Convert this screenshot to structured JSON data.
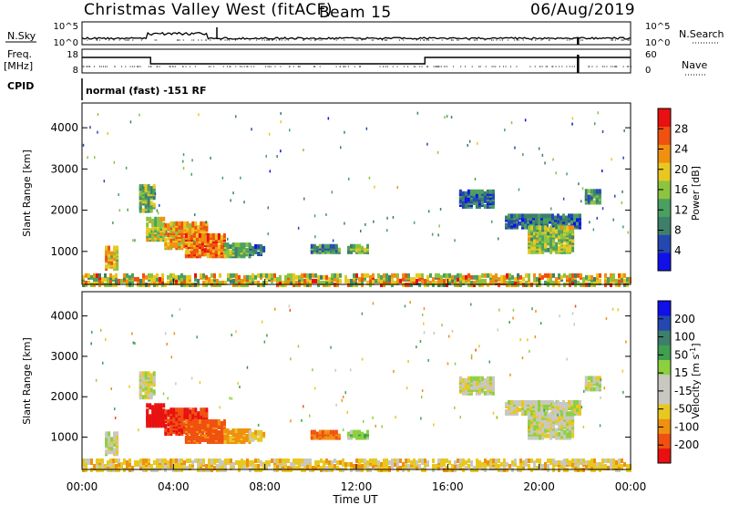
{
  "header": {
    "title": "Christmas Valley West (fitACF)",
    "beam": "Beam 15",
    "date": "06/Aug/2019"
  },
  "top_panels": {
    "nsky_label": "N.Sky",
    "nsky_ticks_left": [
      "10^5",
      "10^0"
    ],
    "nsky_ticks_right": [
      "10^5",
      "10^0"
    ],
    "nsearch_label": "N.Search",
    "freq_label": "Freq.",
    "freq_unit": "[MHz]",
    "freq_ticks": [
      "18",
      "8"
    ],
    "nave_ticks": [
      "60",
      "0"
    ],
    "nave_label": "Nave",
    "cpid_label": "CPID",
    "cpid_text": "normal (fast) -151 RF"
  },
  "colors": {
    "power_scale": [
      "#1010e8",
      "#2448b0",
      "#3e7f6a",
      "#4aa060",
      "#8cc440",
      "#e8c820",
      "#f09010",
      "#f05010",
      "#e81010"
    ],
    "velocity_scale": [
      "#e81010",
      "#f05010",
      "#f09010",
      "#e8c820",
      "#c8c8c0",
      "#c8c8c0",
      "#8cd040",
      "#40a050",
      "#3e7f6a",
      "#2448b0",
      "#1010e8"
    ],
    "ground_scatter": "#b4b4b4"
  },
  "chart_data": [
    {
      "type": "heatmap",
      "name": "power",
      "xlabel": "",
      "ylabel": "Slant Range [km]",
      "ylim": [
        200,
        4600
      ],
      "yticks": [
        "4000",
        "3000",
        "2000",
        "1000"
      ],
      "colorbar": {
        "label": "Power [dB]",
        "range": [
          0,
          32
        ],
        "ticks": [
          "28",
          "24",
          "20",
          "16",
          "12",
          "8",
          "4"
        ]
      },
      "regions": [
        {
          "t": [
            1.0,
            1.5
          ],
          "r": [
            600,
            1100
          ],
          "level": 20
        },
        {
          "t": [
            2.8,
            3.6
          ],
          "r": [
            1300,
            1800
          ],
          "level": 18
        },
        {
          "t": [
            3.6,
            5.4
          ],
          "r": [
            1100,
            1700
          ],
          "level": 22
        },
        {
          "t": [
            4.5,
            6.2
          ],
          "r": [
            900,
            1400
          ],
          "level": 25
        },
        {
          "t": [
            6.2,
            7.3
          ],
          "r": [
            900,
            1200
          ],
          "level": 14
        },
        {
          "t": [
            7.3,
            8.0
          ],
          "r": [
            950,
            1150
          ],
          "level": 8
        },
        {
          "t": [
            10.0,
            11.2
          ],
          "r": [
            1000,
            1150
          ],
          "level": 10
        },
        {
          "t": [
            11.6,
            12.5
          ],
          "r": [
            1000,
            1150
          ],
          "level": 14
        },
        {
          "t": [
            2.5,
            3.2
          ],
          "r": [
            2000,
            2600
          ],
          "level": 14
        },
        {
          "t": [
            16.5,
            18.0
          ],
          "r": [
            2100,
            2500
          ],
          "level": 8
        },
        {
          "t": [
            18.5,
            21.8
          ],
          "r": [
            1600,
            1900
          ],
          "level": 8
        },
        {
          "t": [
            19.5,
            21.5
          ],
          "r": [
            1000,
            1600
          ],
          "level": 16
        },
        {
          "t": [
            22.0,
            22.6
          ],
          "r": [
            2200,
            2500
          ],
          "level": 10
        },
        {
          "t": [
            0.0,
            24.0
          ],
          "r": [
            200,
            450
          ],
          "level": 16
        }
      ]
    },
    {
      "type": "heatmap",
      "name": "velocity",
      "xlabel": "Time UT",
      "ylabel": "Slant Range [km]",
      "ylim": [
        200,
        4600
      ],
      "yticks": [
        "4000",
        "3000",
        "2000",
        "1000"
      ],
      "xticks": [
        "00:00",
        "04:00",
        "08:00",
        "12:00",
        "16:00",
        "20:00",
        "00:00"
      ],
      "colorbar": {
        "label": "Velocity [m s^-1]",
        "ticks": [
          "200",
          "100",
          "50",
          "15",
          "-15",
          "-50",
          "-100",
          "-200"
        ]
      },
      "regions": [
        {
          "t": [
            1.0,
            1.5
          ],
          "r": [
            600,
            1100
          ],
          "v": 0
        },
        {
          "t": [
            2.8,
            3.6
          ],
          "r": [
            1300,
            1800
          ],
          "v": -250
        },
        {
          "t": [
            3.6,
            5.4
          ],
          "r": [
            1100,
            1700
          ],
          "v": -200
        },
        {
          "t": [
            4.5,
            6.2
          ],
          "r": [
            900,
            1400
          ],
          "v": -120
        },
        {
          "t": [
            6.2,
            7.3
          ],
          "r": [
            900,
            1200
          ],
          "v": -60
        },
        {
          "t": [
            7.3,
            8.0
          ],
          "r": [
            950,
            1150
          ],
          "v": -30
        },
        {
          "t": [
            10.0,
            11.2
          ],
          "r": [
            1000,
            1150
          ],
          "v": -100
        },
        {
          "t": [
            11.6,
            12.5
          ],
          "r": [
            1000,
            1150
          ],
          "v": 30
        },
        {
          "t": [
            2.5,
            3.2
          ],
          "r": [
            2000,
            2600
          ],
          "v": 0
        },
        {
          "t": [
            16.5,
            18.0
          ],
          "r": [
            2100,
            2500
          ],
          "v": 0
        },
        {
          "t": [
            18.5,
            21.8
          ],
          "r": [
            1600,
            1900
          ],
          "v": 0
        },
        {
          "t": [
            19.5,
            21.5
          ],
          "r": [
            1000,
            1600
          ],
          "v": 0
        },
        {
          "t": [
            22.0,
            22.6
          ],
          "r": [
            2200,
            2500
          ],
          "v": 0
        },
        {
          "t": [
            0.0,
            24.0
          ],
          "r": [
            200,
            450
          ],
          "v": -30
        }
      ]
    }
  ]
}
